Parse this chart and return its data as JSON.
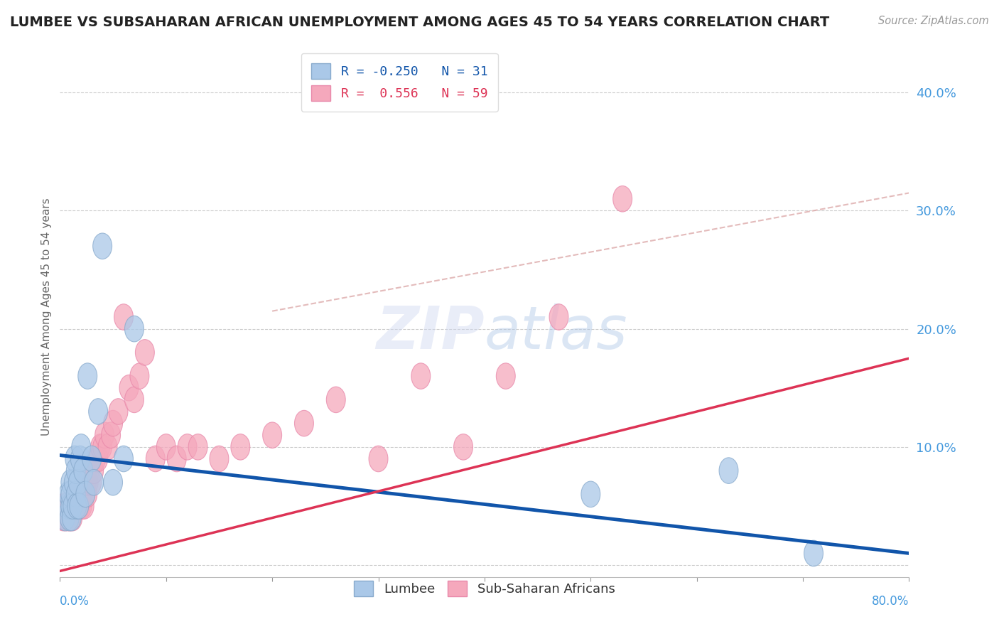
{
  "title": "LUMBEE VS SUBSAHARAN AFRICAN UNEMPLOYMENT AMONG AGES 45 TO 54 YEARS CORRELATION CHART",
  "source": "Source: ZipAtlas.com",
  "ylabel": "Unemployment Among Ages 45 to 54 years",
  "yticks": [
    0.0,
    0.1,
    0.2,
    0.3,
    0.4
  ],
  "ytick_labels": [
    "",
    "10.0%",
    "20.0%",
    "30.0%",
    "40.0%"
  ],
  "xlim": [
    0.0,
    0.8
  ],
  "ylim": [
    -0.01,
    0.43
  ],
  "lumbee_R": -0.25,
  "lumbee_N": 31,
  "subsaharan_R": 0.556,
  "subsaharan_N": 59,
  "lumbee_color": "#aac8e8",
  "subsaharan_color": "#f5a8bc",
  "lumbee_edge_color": "#88aacc",
  "subsaharan_edge_color": "#e888aa",
  "lumbee_line_color": "#1155aa",
  "subsaharan_line_color": "#dd3355",
  "dashed_line_color": "#ddaaaa",
  "background_color": "#ffffff",
  "grid_color": "#cccccc",
  "tick_label_color": "#4499dd",
  "title_color": "#222222",
  "lumbee_x": [
    0.005,
    0.007,
    0.008,
    0.009,
    0.01,
    0.01,
    0.01,
    0.011,
    0.012,
    0.013,
    0.014,
    0.015,
    0.015,
    0.016,
    0.017,
    0.018,
    0.019,
    0.02,
    0.022,
    0.024,
    0.026,
    0.03,
    0.032,
    0.036,
    0.04,
    0.05,
    0.06,
    0.07,
    0.5,
    0.63,
    0.71
  ],
  "lumbee_y": [
    0.04,
    0.05,
    0.06,
    0.04,
    0.07,
    0.05,
    0.06,
    0.04,
    0.05,
    0.07,
    0.09,
    0.06,
    0.08,
    0.05,
    0.07,
    0.05,
    0.09,
    0.1,
    0.08,
    0.06,
    0.16,
    0.09,
    0.07,
    0.13,
    0.27,
    0.07,
    0.09,
    0.2,
    0.06,
    0.08,
    0.01
  ],
  "subsaharan_x": [
    0.003,
    0.004,
    0.005,
    0.006,
    0.007,
    0.008,
    0.009,
    0.01,
    0.01,
    0.011,
    0.012,
    0.013,
    0.014,
    0.015,
    0.016,
    0.017,
    0.018,
    0.019,
    0.02,
    0.021,
    0.022,
    0.023,
    0.024,
    0.025,
    0.026,
    0.027,
    0.028,
    0.03,
    0.032,
    0.034,
    0.036,
    0.038,
    0.04,
    0.042,
    0.045,
    0.048,
    0.05,
    0.055,
    0.06,
    0.065,
    0.07,
    0.075,
    0.08,
    0.09,
    0.1,
    0.11,
    0.12,
    0.13,
    0.15,
    0.17,
    0.2,
    0.23,
    0.26,
    0.3,
    0.34,
    0.38,
    0.42,
    0.47,
    0.53
  ],
  "subsaharan_y": [
    0.04,
    0.05,
    0.04,
    0.05,
    0.04,
    0.05,
    0.04,
    0.05,
    0.04,
    0.05,
    0.04,
    0.05,
    0.05,
    0.06,
    0.05,
    0.05,
    0.06,
    0.05,
    0.06,
    0.05,
    0.06,
    0.05,
    0.06,
    0.07,
    0.06,
    0.07,
    0.08,
    0.07,
    0.08,
    0.09,
    0.09,
    0.1,
    0.1,
    0.11,
    0.1,
    0.11,
    0.12,
    0.13,
    0.21,
    0.15,
    0.14,
    0.16,
    0.18,
    0.09,
    0.1,
    0.09,
    0.1,
    0.1,
    0.09,
    0.1,
    0.11,
    0.12,
    0.14,
    0.09,
    0.16,
    0.1,
    0.16,
    0.21,
    0.31
  ],
  "lumbee_trend_x0": 0.0,
  "lumbee_trend_y0": 0.093,
  "lumbee_trend_x1": 0.8,
  "lumbee_trend_y1": 0.01,
  "subsaharan_trend_x0": 0.0,
  "subsaharan_trend_y0": -0.005,
  "subsaharan_trend_x1": 0.8,
  "subsaharan_trend_y1": 0.175,
  "dashed_trend_x0": 0.2,
  "dashed_trend_y0": 0.215,
  "dashed_trend_x1": 0.8,
  "dashed_trend_y1": 0.315
}
